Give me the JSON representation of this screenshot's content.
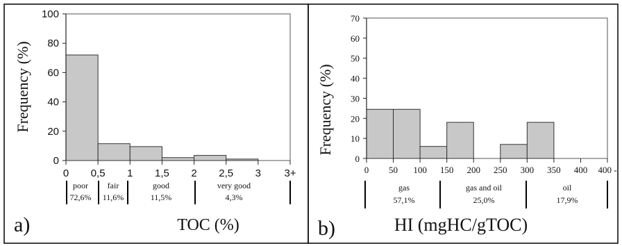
{
  "chart_data": [
    {
      "type": "bar",
      "panel_label": "a)",
      "xlabel": "TOC (%)",
      "ylabel": "Frequency (%)",
      "title": "",
      "ylim": [
        0,
        100
      ],
      "yticks": [
        "0",
        "20",
        "40",
        "60",
        "80",
        "100"
      ],
      "xticks": [
        "0",
        "0,5",
        "1",
        "1,5",
        "2",
        "2,5",
        "3",
        "3+"
      ],
      "bins": [
        {
          "from": "0",
          "to": "0,5",
          "value": 72
        },
        {
          "from": "0,5",
          "to": "1",
          "value": 11.5
        },
        {
          "from": "1",
          "to": "1,5",
          "value": 9.5
        },
        {
          "from": "1,5",
          "to": "2",
          "value": 2
        },
        {
          "from": "2",
          "to": "2,5",
          "value": 3.5
        },
        {
          "from": "2,5",
          "to": "3",
          "value": 1
        },
        {
          "from": "3",
          "to": "3+",
          "value": 0
        }
      ],
      "categories": [
        {
          "name": "poor",
          "pct": "72,6%"
        },
        {
          "name": "fair",
          "pct": "11,6%"
        },
        {
          "name": "good",
          "pct": "11,5%"
        },
        {
          "name": "very good",
          "pct": "4,3%"
        }
      ],
      "grid": false
    },
    {
      "type": "bar",
      "panel_label": "b)",
      "xlabel": "HI (mgHC/gTOC)",
      "ylabel": "Frequency (%)",
      "title": "",
      "ylim": [
        0,
        70
      ],
      "yticks": [
        "0",
        "10",
        "20",
        "30",
        "40",
        "50",
        "60",
        "70"
      ],
      "xticks": [
        "0",
        "50",
        "100",
        "150",
        "200",
        "250",
        "300",
        "350",
        "400",
        "400 -"
      ],
      "bins": [
        {
          "from": "0",
          "to": "50",
          "value": 24.5
        },
        {
          "from": "50",
          "to": "100",
          "value": 24.5
        },
        {
          "from": "100",
          "to": "150",
          "value": 6
        },
        {
          "from": "150",
          "to": "200",
          "value": 18
        },
        {
          "from": "200",
          "to": "250",
          "value": 0
        },
        {
          "from": "250",
          "to": "300",
          "value": 7
        },
        {
          "from": "300",
          "to": "350",
          "value": 18
        },
        {
          "from": "350",
          "to": "400",
          "value": 0
        },
        {
          "from": "400",
          "to": "400 -",
          "value": 0
        }
      ],
      "categories": [
        {
          "name": "gas",
          "pct": "57,1%"
        },
        {
          "name": "gas and oil",
          "pct": "25,0%"
        },
        {
          "name": "oil",
          "pct": "17,9%"
        }
      ],
      "grid": false
    }
  ]
}
